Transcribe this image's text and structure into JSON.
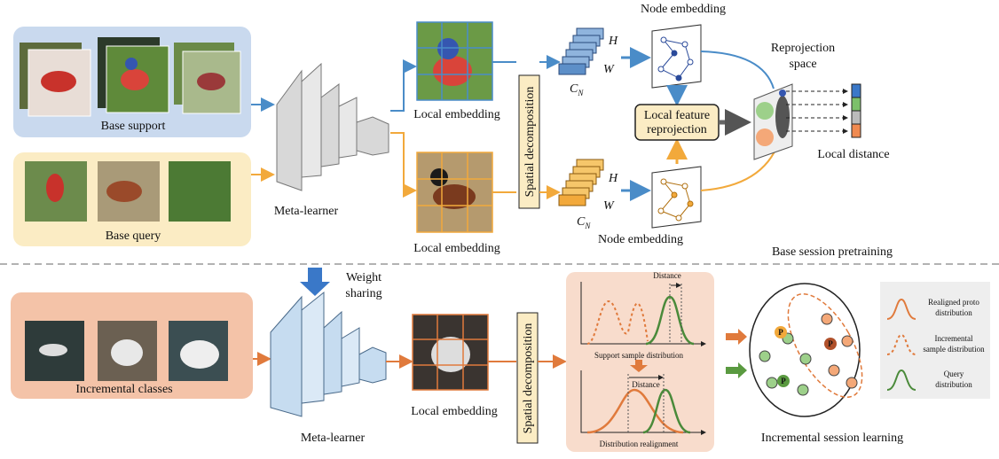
{
  "top": {
    "base_support": "Base support",
    "base_query": "Base query",
    "meta_learner": "Meta-learner",
    "local_embedding_support": "Local embedding",
    "local_embedding_query": "Local embedding",
    "spatial_decomposition": "Spatial decomposition",
    "node_embedding_support": "Node embedding",
    "node_embedding_query": "Node embedding",
    "tensor_support": {
      "h": "H",
      "w": "W",
      "c": "C",
      "c_sub": "N"
    },
    "tensor_query": {
      "h": "H",
      "w": "W",
      "c": "C",
      "c_sub": "N"
    },
    "reprojection": [
      "Local feature",
      "reprojection"
    ],
    "reprojection_space": [
      "Reprojection",
      "space"
    ],
    "local_distance": "Local distance",
    "caption": "Base session pretraining"
  },
  "bottom": {
    "incremental_classes": "Incremental classes",
    "weight_sharing": [
      "Weight",
      "sharing"
    ],
    "meta_learner": "Meta-learner",
    "local_embedding": "Local embedding",
    "spatial_decomposition": "Spatial decomposition",
    "distance_top": "Distance",
    "support_distribution": "Support sample distribution",
    "distance_bottom": "Distance",
    "distribution_realignment": "Distribution realignment",
    "proto_marks": [
      "P",
      "P",
      "P"
    ],
    "legend": [
      [
        "Realigned proto",
        "distribution"
      ],
      [
        "Incremental",
        "sample distribution"
      ],
      [
        "Query",
        "distribution"
      ]
    ],
    "caption": "Incremental session learning"
  }
}
